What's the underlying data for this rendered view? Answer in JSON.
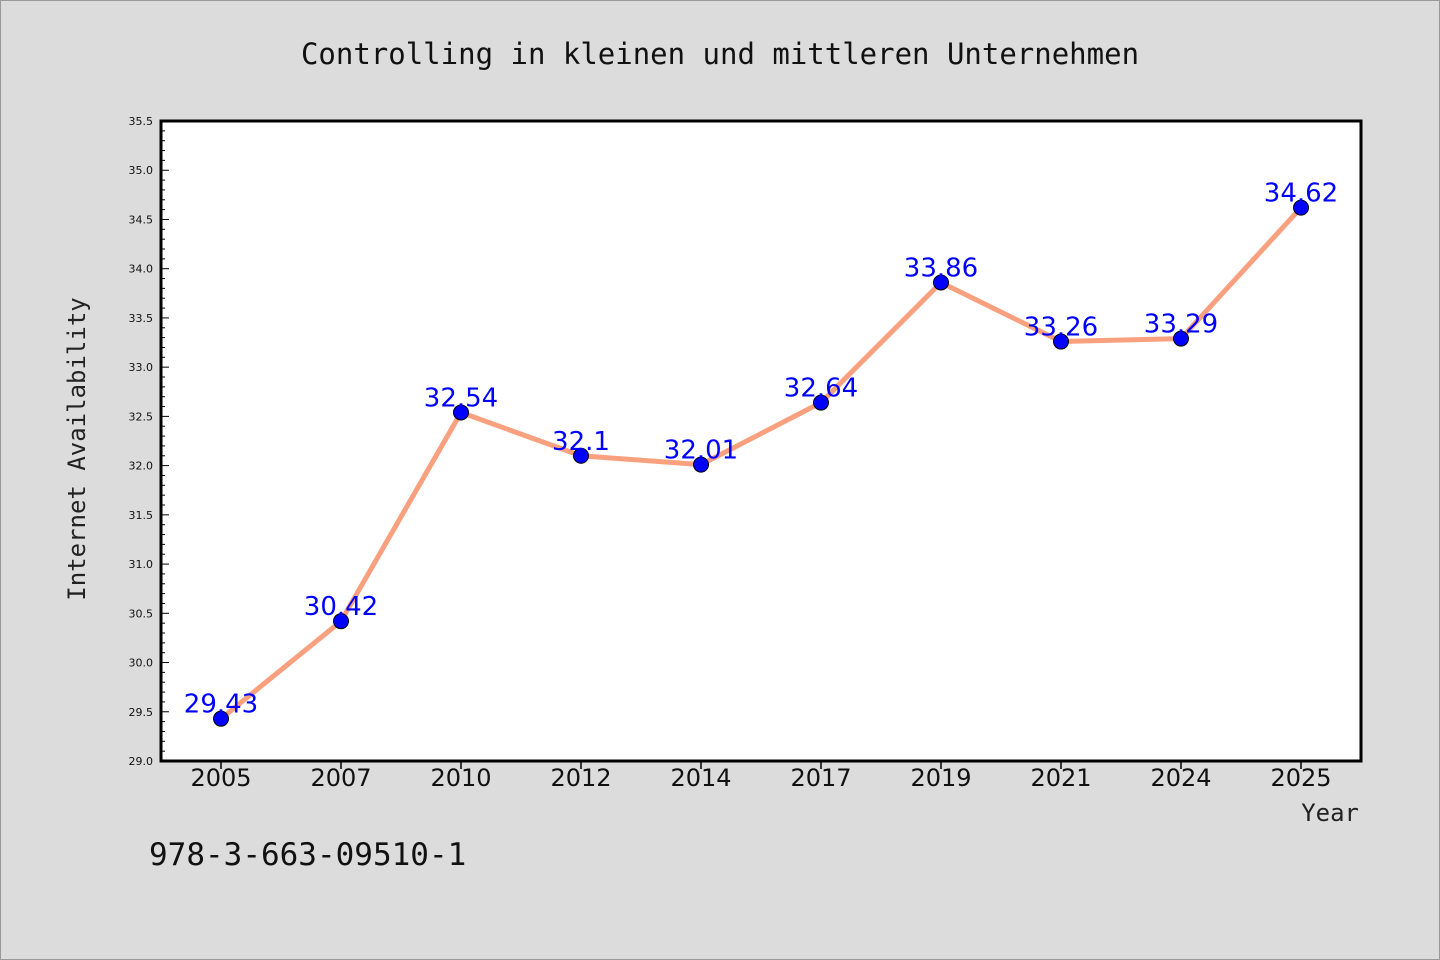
{
  "footer_text": "978-3-663-09510-1",
  "colors": {
    "background": "#dcdcdc",
    "plot_background": "#ffffff",
    "line": "#f9a07e",
    "marker": "#0000ff",
    "data_label": "#0000ff"
  },
  "chart_data": {
    "type": "line",
    "title": "Controlling in kleinen und mittleren Unternehmen",
    "xlabel": "Year",
    "ylabel": "Internet Availability",
    "categories": [
      "2005",
      "2007",
      "2010",
      "2012",
      "2014",
      "2017",
      "2019",
      "2021",
      "2024",
      "2025"
    ],
    "series": [
      {
        "values": [
          29.43,
          30.42,
          32.54,
          32.1,
          32.01,
          32.64,
          33.86,
          33.26,
          33.29,
          34.62
        ],
        "labels": [
          "29.43",
          "30.42",
          "32.54",
          "32.1",
          "32.01",
          "32.64",
          "33.86",
          "33.26",
          "33.29",
          "34.62"
        ]
      }
    ],
    "ylim": [
      29.0,
      35.5
    ],
    "yticks": [
      "29.0",
      "29.5",
      "30.0",
      "30.5",
      "31.0",
      "31.5",
      "32.0",
      "32.5",
      "33.0",
      "33.5",
      "34.0",
      "34.5",
      "35.0",
      "35.5"
    ],
    "ytick_values": [
      29.0,
      29.5,
      30.0,
      30.5,
      31.0,
      31.5,
      32.0,
      32.5,
      33.0,
      33.5,
      34.0,
      34.5,
      35.0,
      35.5
    ],
    "grid": false,
    "legend": "none"
  }
}
